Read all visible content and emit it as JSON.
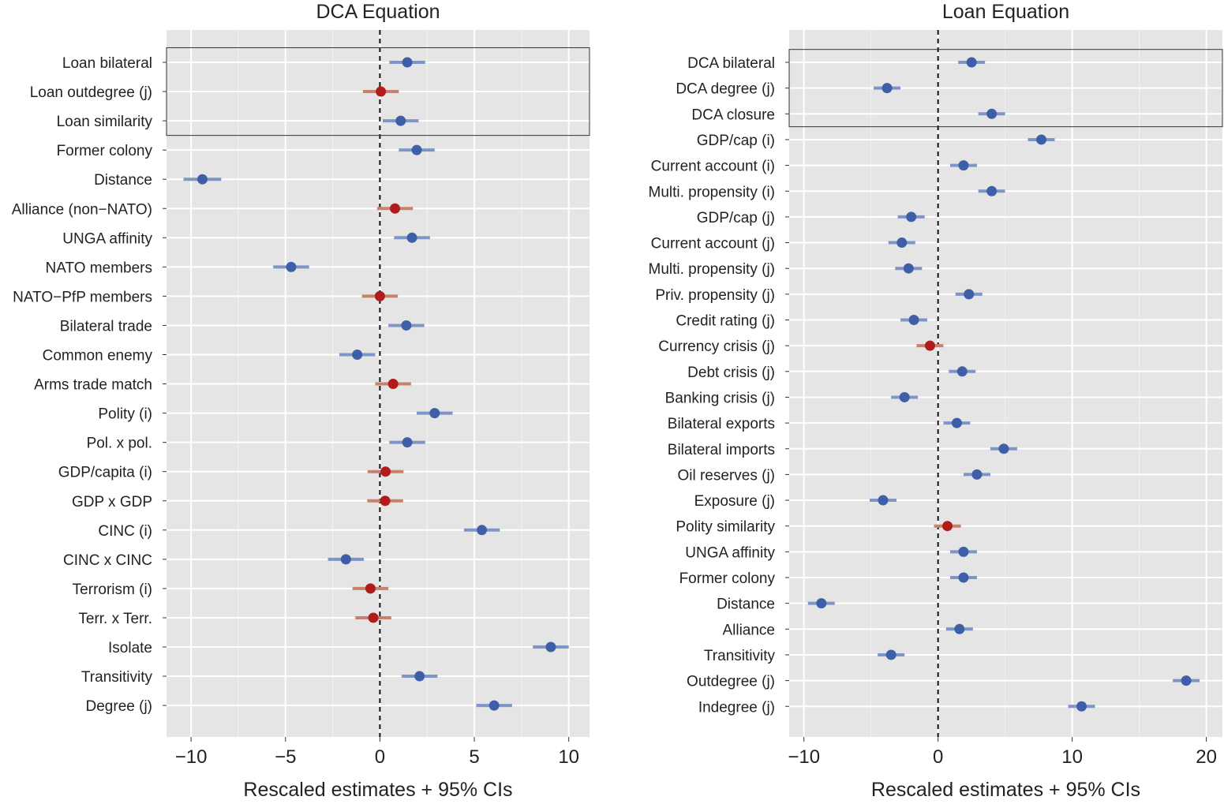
{
  "colors": {
    "panel_bg": "#e5e5e5",
    "grid": "#ffffff",
    "significant": "#3e5fa8",
    "significant_ci": "#7f95c8",
    "nonsignificant": "#b01c1c",
    "nonsignificant_ci": "#c8826c",
    "zero_line": "#111111"
  },
  "chart_data": [
    {
      "type": "coefficient-plot",
      "title": "DCA Equation",
      "xlabel": "Rescaled estimates + 95% CIs",
      "xlim": [
        -11.3,
        11.1
      ],
      "xticks": [
        -10,
        -5,
        0,
        5,
        10
      ],
      "xtick_labels": [
        "−10",
        "−5",
        "0",
        "5",
        "10"
      ],
      "reference_line": 0,
      "boxed_terms": [
        "Loan bilateral",
        "Loan outdegree (j)",
        "Loan similarity"
      ],
      "terms": [
        {
          "label": "Loan bilateral",
          "estimate": 1.45,
          "ci": [
            0.5,
            2.4
          ],
          "significant": true
        },
        {
          "label": "Loan outdegree (j)",
          "estimate": 0.05,
          "ci": [
            -0.9,
            1.0
          ],
          "significant": false
        },
        {
          "label": "Loan similarity",
          "estimate": 1.1,
          "ci": [
            0.15,
            2.05
          ],
          "significant": true
        },
        {
          "label": "Former colony",
          "estimate": 1.95,
          "ci": [
            1.0,
            2.9
          ],
          "significant": true
        },
        {
          "label": "Distance",
          "estimate": -9.4,
          "ci": [
            -10.4,
            -8.4
          ],
          "significant": true
        },
        {
          "label": "Alliance (non−NATO)",
          "estimate": 0.8,
          "ci": [
            -0.15,
            1.75
          ],
          "significant": false
        },
        {
          "label": "UNGA affinity",
          "estimate": 1.7,
          "ci": [
            0.75,
            2.65
          ],
          "significant": true
        },
        {
          "label": "NATO members",
          "estimate": -4.7,
          "ci": [
            -5.65,
            -3.75
          ],
          "significant": true
        },
        {
          "label": "NATO−PfP members",
          "estimate": 0.0,
          "ci": [
            -0.95,
            0.95
          ],
          "significant": false
        },
        {
          "label": "Bilateral trade",
          "estimate": 1.4,
          "ci": [
            0.45,
            2.35
          ],
          "significant": true
        },
        {
          "label": "Common enemy",
          "estimate": -1.2,
          "ci": [
            -2.15,
            -0.25
          ],
          "significant": true
        },
        {
          "label": "Arms trade match",
          "estimate": 0.7,
          "ci": [
            -0.25,
            1.65
          ],
          "significant": false
        },
        {
          "label": "Polity (i)",
          "estimate": 2.9,
          "ci": [
            1.95,
            3.85
          ],
          "significant": true
        },
        {
          "label": "Pol. x pol.",
          "estimate": 1.45,
          "ci": [
            0.5,
            2.4
          ],
          "significant": true
        },
        {
          "label": "GDP/capita (i)",
          "estimate": 0.3,
          "ci": [
            -0.65,
            1.25
          ],
          "significant": false
        },
        {
          "label": "GDP x GDP",
          "estimate": 0.28,
          "ci": [
            -0.67,
            1.23
          ],
          "significant": false
        },
        {
          "label": "CINC (i)",
          "estimate": 5.4,
          "ci": [
            4.45,
            6.35
          ],
          "significant": true
        },
        {
          "label": "CINC x CINC",
          "estimate": -1.8,
          "ci": [
            -2.75,
            -0.85
          ],
          "significant": true
        },
        {
          "label": "Terrorism (i)",
          "estimate": -0.5,
          "ci": [
            -1.45,
            0.45
          ],
          "significant": false
        },
        {
          "label": "Terr. x Terr.",
          "estimate": -0.35,
          "ci": [
            -1.3,
            0.6
          ],
          "significant": false
        },
        {
          "label": "Isolate",
          "estimate": 9.05,
          "ci": [
            8.1,
            10.0
          ],
          "significant": true
        },
        {
          "label": "Transitivity",
          "estimate": 2.1,
          "ci": [
            1.15,
            3.05
          ],
          "significant": true
        },
        {
          "label": "Degree (j)",
          "estimate": 6.05,
          "ci": [
            5.1,
            7.0
          ],
          "significant": true
        }
      ]
    },
    {
      "type": "coefficient-plot",
      "title": "Loan Equation",
      "xlabel": "Rescaled estimates + 95% CIs",
      "xlim": [
        -11.1,
        21.2
      ],
      "xticks": [
        -10,
        0,
        10,
        20
      ],
      "xtick_labels": [
        "−10",
        "0",
        "10",
        "20"
      ],
      "reference_line": 0,
      "boxed_terms": [
        "DCA bilateral",
        "DCA degree (j)",
        "DCA closure"
      ],
      "terms": [
        {
          "label": "DCA bilateral",
          "estimate": 2.5,
          "ci": [
            1.5,
            3.5
          ],
          "significant": true
        },
        {
          "label": "DCA degree (j)",
          "estimate": -3.8,
          "ci": [
            -4.8,
            -2.8
          ],
          "significant": true
        },
        {
          "label": "DCA closure",
          "estimate": 4.0,
          "ci": [
            3.0,
            5.0
          ],
          "significant": true
        },
        {
          "label": "GDP/cap (i)",
          "estimate": 7.7,
          "ci": [
            6.7,
            8.7
          ],
          "significant": true
        },
        {
          "label": "Current account (i)",
          "estimate": 1.9,
          "ci": [
            0.9,
            2.9
          ],
          "significant": true
        },
        {
          "label": "Multi. propensity (i)",
          "estimate": 4.0,
          "ci": [
            3.0,
            5.0
          ],
          "significant": true
        },
        {
          "label": "GDP/cap (j)",
          "estimate": -2.0,
          "ci": [
            -3.0,
            -1.0
          ],
          "significant": true
        },
        {
          "label": "Current account (j)",
          "estimate": -2.7,
          "ci": [
            -3.7,
            -1.7
          ],
          "significant": true
        },
        {
          "label": "Multi. propensity (j)",
          "estimate": -2.2,
          "ci": [
            -3.2,
            -1.2
          ],
          "significant": true
        },
        {
          "label": "Priv. propensity (j)",
          "estimate": 2.3,
          "ci": [
            1.3,
            3.3
          ],
          "significant": true
        },
        {
          "label": "Credit rating (j)",
          "estimate": -1.8,
          "ci": [
            -2.8,
            -0.8
          ],
          "significant": true
        },
        {
          "label": "Currency crisis (j)",
          "estimate": -0.6,
          "ci": [
            -1.6,
            0.4
          ],
          "significant": false
        },
        {
          "label": "Debt crisis (j)",
          "estimate": 1.8,
          "ci": [
            0.8,
            2.8
          ],
          "significant": true
        },
        {
          "label": "Banking crisis (j)",
          "estimate": -2.5,
          "ci": [
            -3.5,
            -1.5
          ],
          "significant": true
        },
        {
          "label": "Bilateral exports",
          "estimate": 1.4,
          "ci": [
            0.4,
            2.4
          ],
          "significant": true
        },
        {
          "label": "Bilateral imports",
          "estimate": 4.9,
          "ci": [
            3.9,
            5.9
          ],
          "significant": true
        },
        {
          "label": "Oil reserves (j)",
          "estimate": 2.9,
          "ci": [
            1.9,
            3.9
          ],
          "significant": true
        },
        {
          "label": "Exposure (j)",
          "estimate": -4.1,
          "ci": [
            -5.1,
            -3.1
          ],
          "significant": true
        },
        {
          "label": "Polity similarity",
          "estimate": 0.7,
          "ci": [
            -0.3,
            1.7
          ],
          "significant": false
        },
        {
          "label": "UNGA affinity",
          "estimate": 1.9,
          "ci": [
            0.9,
            2.9
          ],
          "significant": true
        },
        {
          "label": "Former colony",
          "estimate": 1.9,
          "ci": [
            0.9,
            2.9
          ],
          "significant": true
        },
        {
          "label": "Distance",
          "estimate": -8.7,
          "ci": [
            -9.7,
            -7.7
          ],
          "significant": true
        },
        {
          "label": "Alliance",
          "estimate": 1.6,
          "ci": [
            0.6,
            2.6
          ],
          "significant": true
        },
        {
          "label": "Transitivity",
          "estimate": -3.5,
          "ci": [
            -4.5,
            -2.5
          ],
          "significant": true
        },
        {
          "label": "Outdegree (j)",
          "estimate": 18.5,
          "ci": [
            17.5,
            19.5
          ],
          "significant": true
        },
        {
          "label": "Indegree (j)",
          "estimate": 10.7,
          "ci": [
            9.7,
            11.7
          ],
          "significant": true
        }
      ]
    }
  ]
}
